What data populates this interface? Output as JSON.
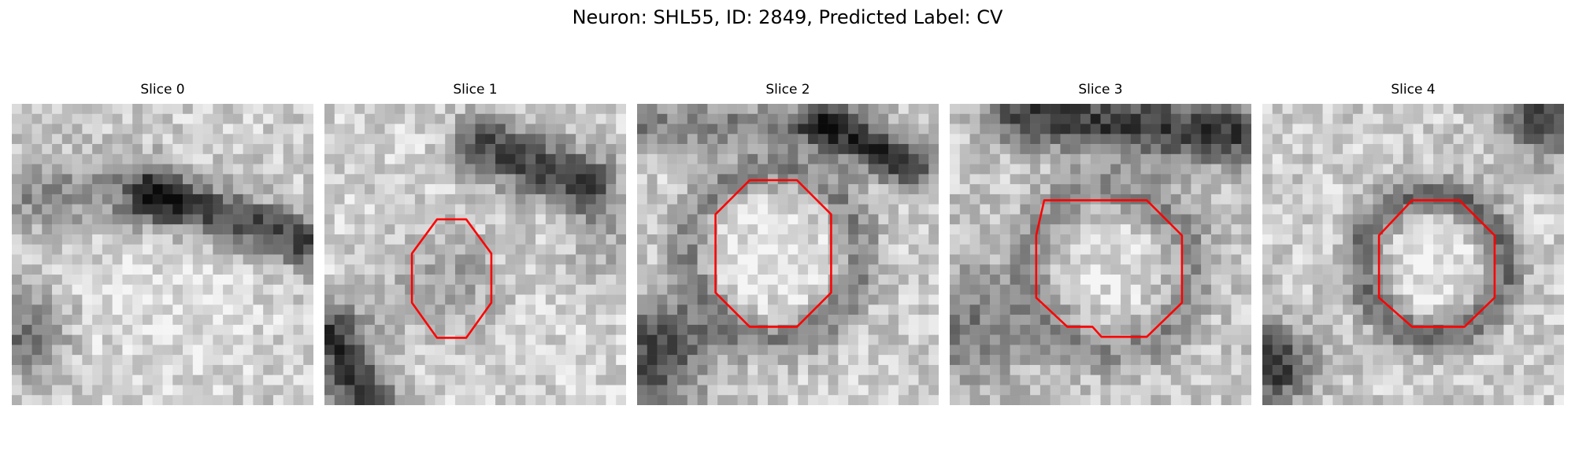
{
  "figure": {
    "title": "Neuron: SHL55, ID: 2849, Predicted Label: CV"
  },
  "panels": [
    {
      "title": "Slice 0",
      "has_contour": false
    },
    {
      "title": "Slice 1",
      "has_contour": true
    },
    {
      "title": "Slice 2",
      "has_contour": true
    },
    {
      "title": "Slice 3",
      "has_contour": true
    },
    {
      "title": "Slice 4",
      "has_contour": true
    }
  ],
  "colors": {
    "contour": "#ff0000",
    "background": "#ffffff",
    "colormap": "gray"
  }
}
